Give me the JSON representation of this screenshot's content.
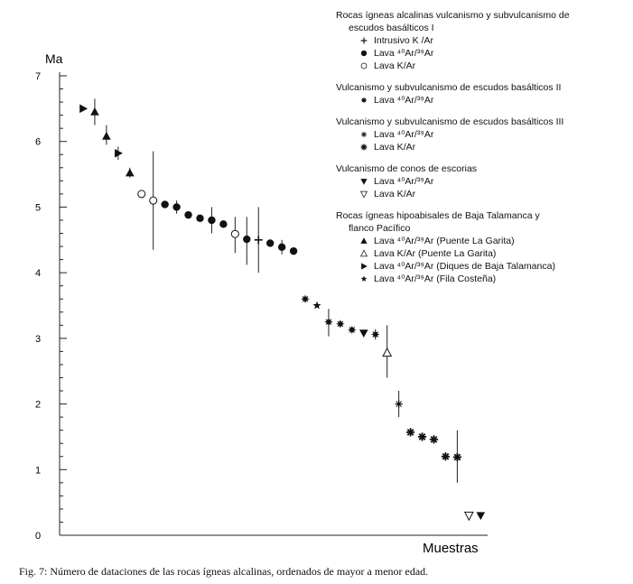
{
  "chart_data": {
    "type": "scatter",
    "ylabel": "Ma",
    "xlabel": "Muestras",
    "ylim": [
      0,
      7
    ],
    "yticks": [
      "0",
      "1",
      "2",
      "3",
      "4",
      "5",
      "6",
      "7"
    ],
    "x_axis_ticks": false,
    "legend_position": "top-right",
    "legend_groups": [
      {
        "title_lines": [
          "Rocas ígneas alcalinas vulcanismo y subvulcanismo de",
          "escudos basálticos I"
        ],
        "items": [
          {
            "marker": "plus",
            "label": "Intrusivo K /Ar"
          },
          {
            "marker": "filled-circle",
            "label": "Lava  ⁴⁰Ar/³⁹Ar"
          },
          {
            "marker": "open-circle",
            "label": "Lava K/Ar"
          }
        ]
      },
      {
        "title_lines": [
          "Vulcanismo y subvulcanismo de escudos basálticos II"
        ],
        "items": [
          {
            "marker": "burst",
            "label": "Lava  ⁴⁰Ar/³⁹Ar"
          }
        ]
      },
      {
        "title_lines": [
          "Vulcanismo y subvulcanismo de escudos basálticos III"
        ],
        "items": [
          {
            "marker": "asterisk",
            "label": "Lava  ⁴⁰Ar/³⁹Ar"
          },
          {
            "marker": "asterisk-bold",
            "label": "Lava K/Ar"
          }
        ]
      },
      {
        "title_lines": [
          "Vulcanismo de conos de escorias"
        ],
        "items": [
          {
            "marker": "filled-triangle-down",
            "label": "Lava ⁴⁰Ar/³⁹Ar"
          },
          {
            "marker": "open-triangle-down",
            "label": "Lava K/Ar"
          }
        ]
      },
      {
        "title_lines": [
          "Rocas ígneas hipoabisales de Baja Talamanca y",
          "flanco Pacífico"
        ],
        "items": [
          {
            "marker": "filled-triangle-up",
            "label": "Lava  ⁴⁰Ar/³⁹Ar (Puente La Garita)"
          },
          {
            "marker": "open-triangle-up",
            "label": "Lava K/Ar (Puente La Garita)"
          },
          {
            "marker": "filled-triangle-right",
            "label": "Lava  ⁴⁰Ar/³⁹Ar  (Diques de Baja Talamanca)"
          },
          {
            "marker": "star",
            "label": "Lava  ⁴⁰Ar/³⁹Ar  (Fila Costeña)"
          }
        ]
      }
    ],
    "points": [
      {
        "x": 1,
        "y": 6.5,
        "marker": "filled-triangle-right"
      },
      {
        "x": 2,
        "y": 6.45,
        "marker": "filled-triangle-up",
        "err": [
          6.25,
          6.65
        ]
      },
      {
        "x": 3,
        "y": 6.08,
        "marker": "filled-triangle-up",
        "err": [
          5.95,
          6.25
        ]
      },
      {
        "x": 4,
        "y": 5.82,
        "marker": "filled-triangle-right",
        "err": [
          5.72,
          5.92
        ]
      },
      {
        "x": 5,
        "y": 5.52,
        "marker": "filled-triangle-up",
        "err": [
          5.45,
          5.6
        ]
      },
      {
        "x": 6,
        "y": 5.2,
        "marker": "open-circle"
      },
      {
        "x": 7,
        "y": 5.1,
        "marker": "open-circle",
        "err": [
          4.35,
          5.85
        ]
      },
      {
        "x": 8,
        "y": 5.04,
        "marker": "filled-circle"
      },
      {
        "x": 9,
        "y": 5.0,
        "marker": "filled-circle",
        "err": [
          4.9,
          5.1
        ]
      },
      {
        "x": 10,
        "y": 4.88,
        "marker": "filled-circle"
      },
      {
        "x": 11,
        "y": 4.83,
        "marker": "filled-circle"
      },
      {
        "x": 12,
        "y": 4.8,
        "marker": "filled-circle",
        "err": [
          4.6,
          5.0
        ]
      },
      {
        "x": 13,
        "y": 4.74,
        "marker": "filled-circle"
      },
      {
        "x": 14,
        "y": 4.59,
        "marker": "open-circle",
        "err": [
          4.3,
          4.85
        ]
      },
      {
        "x": 15,
        "y": 4.51,
        "marker": "filled-circle",
        "err": [
          4.12,
          4.85
        ]
      },
      {
        "x": 16,
        "y": 4.5,
        "marker": "plus",
        "err": [
          4.0,
          5.0
        ]
      },
      {
        "x": 17,
        "y": 4.45,
        "marker": "filled-circle"
      },
      {
        "x": 18,
        "y": 4.39,
        "marker": "filled-circle",
        "err": [
          4.28,
          4.5
        ]
      },
      {
        "x": 19,
        "y": 4.33,
        "marker": "filled-circle"
      },
      {
        "x": 20,
        "y": 3.6,
        "marker": "burst"
      },
      {
        "x": 21,
        "y": 3.5,
        "marker": "star"
      },
      {
        "x": 22,
        "y": 3.25,
        "marker": "burst",
        "err": [
          3.03,
          3.45
        ]
      },
      {
        "x": 23,
        "y": 3.22,
        "marker": "burst"
      },
      {
        "x": 24,
        "y": 3.13,
        "marker": "burst"
      },
      {
        "x": 25,
        "y": 3.08,
        "marker": "filled-triangle-down"
      },
      {
        "x": 26,
        "y": 3.06,
        "marker": "burst",
        "err": [
          2.98,
          3.14
        ]
      },
      {
        "x": 27,
        "y": 2.78,
        "marker": "open-triangle-up",
        "err": [
          2.4,
          3.2
        ]
      },
      {
        "x": 28,
        "y": 2.0,
        "marker": "asterisk",
        "err": [
          1.8,
          2.2
        ]
      },
      {
        "x": 29,
        "y": 1.57,
        "marker": "asterisk-bold"
      },
      {
        "x": 30,
        "y": 1.5,
        "marker": "asterisk-bold"
      },
      {
        "x": 31,
        "y": 1.46,
        "marker": "asterisk-bold"
      },
      {
        "x": 32,
        "y": 1.2,
        "marker": "asterisk-bold"
      },
      {
        "x": 33,
        "y": 1.19,
        "marker": "asterisk-bold",
        "err": [
          0.8,
          1.6
        ]
      },
      {
        "x": 34,
        "y": 0.3,
        "marker": "open-triangle-down"
      },
      {
        "x": 35,
        "y": 0.3,
        "marker": "filled-triangle-down"
      }
    ]
  },
  "caption": "Fig. 7: Número de dataciones de las rocas ígneas alcalinas, ordenados de mayor a menor edad."
}
